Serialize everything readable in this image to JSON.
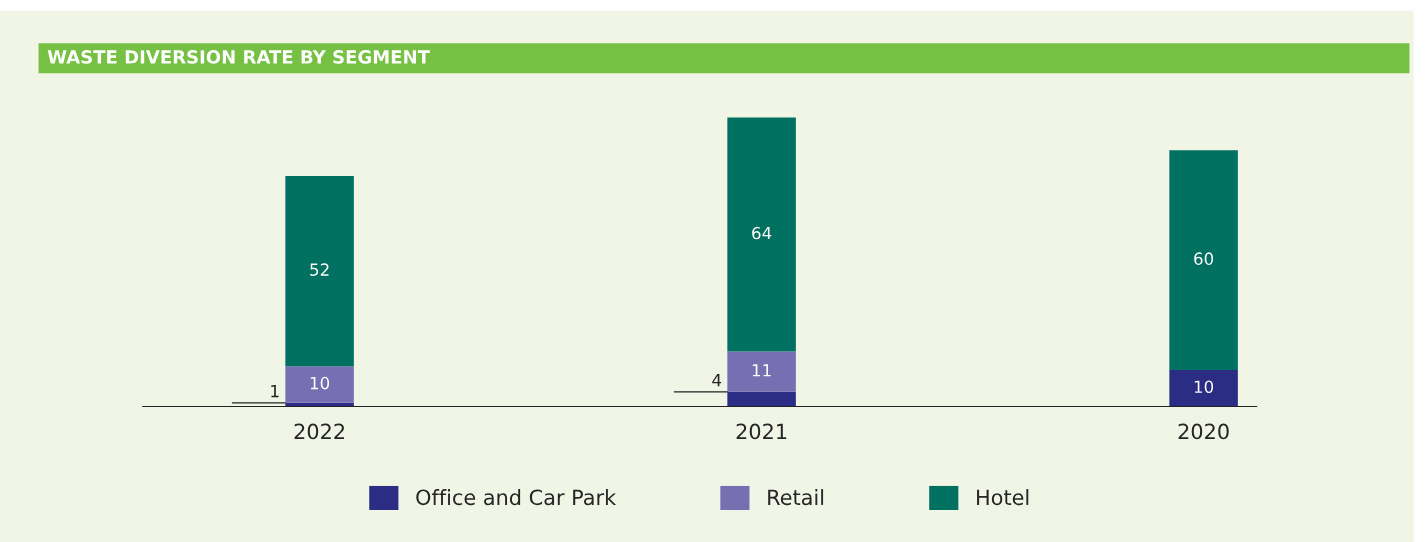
{
  "chart_data": {
    "type": "bar",
    "title": "WASTE DIVERSION RATE BY SEGMENT",
    "categories": [
      "2022",
      "2021",
      "2020"
    ],
    "stacked": true,
    "data_labels": true,
    "legend": "bottom",
    "grid": false,
    "series": [
      {
        "name": "Office and Car Park",
        "color": "#2b2d84",
        "values": [
          1,
          4,
          10
        ]
      },
      {
        "name": "Retail",
        "color": "#7670b3",
        "values": [
          10,
          11,
          null
        ]
      },
      {
        "name": "Hotel",
        "color": "#007060",
        "values": [
          52,
          64,
          60
        ]
      }
    ]
  }
}
